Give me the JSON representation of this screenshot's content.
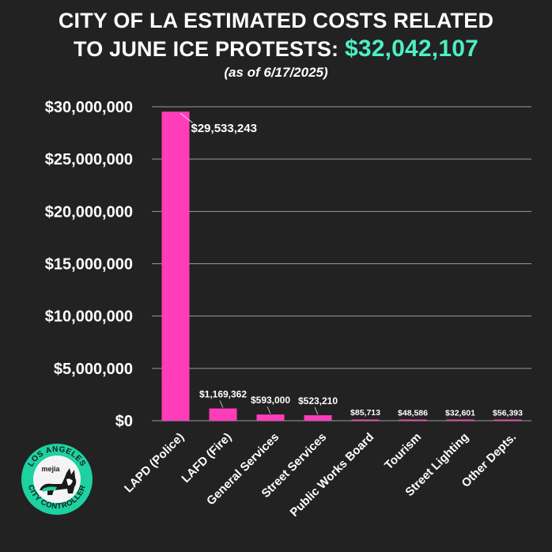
{
  "title": {
    "line1": "CITY OF LA ESTIMATED COSTS RELATED",
    "line2_prefix": "TO JUNE ICE PROTESTS:",
    "line2_total": "$32,042,107",
    "subtitle": "(as of 6/17/2025)"
  },
  "colors": {
    "background": "#222222",
    "bar": "#ff3dbb",
    "total_accent": "#4cf0c4",
    "grid": "#9a9a9a",
    "logo_ring": "#1dd1a1"
  },
  "logo": {
    "text_top": "LOS ANGELES",
    "text_bottom": "CITY CONTROLLER",
    "name": "mejia",
    "icon": "corgi-logo-icon"
  },
  "chart_data": {
    "type": "bar",
    "title": "CITY OF LA ESTIMATED COSTS RELATED TO JUNE ICE PROTESTS: $32,042,107",
    "subtitle": "(as of 6/17/2025)",
    "categories": [
      "LAPD (Police)",
      "LAFD (Fire)",
      "General Services",
      "Street Services",
      "Public Works Board",
      "Tourism",
      "Street Lighting",
      "Other Depts."
    ],
    "values": [
      29533243,
      1169362,
      593000,
      523210,
      85713,
      48586,
      32601,
      56393
    ],
    "data_labels": [
      "$29,533,243",
      "$1,169,362",
      "$593,000",
      "$523,210",
      "$85,713",
      "$48,586",
      "$32,601",
      "$56,393"
    ],
    "ylim": [
      0,
      30000000
    ],
    "yticks": [
      0,
      5000000,
      10000000,
      15000000,
      20000000,
      25000000,
      30000000
    ],
    "ytick_labels": [
      "$0",
      "$5,000,000",
      "$10,000,000",
      "$15,000,000",
      "$20,000,000",
      "$25,000,000",
      "$30,000,000"
    ],
    "xlabel": "",
    "ylabel": "",
    "grid": true,
    "legend": "none"
  }
}
